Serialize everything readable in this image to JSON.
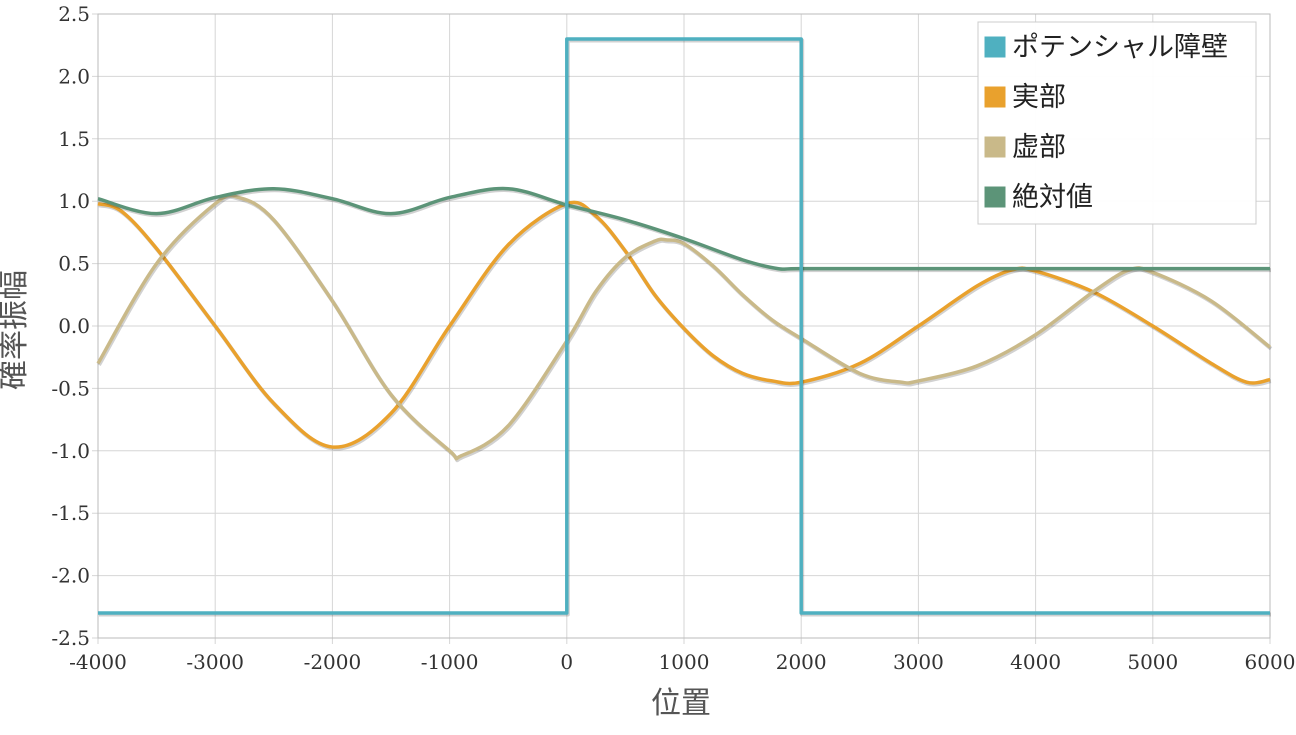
{
  "chart_data": {
    "type": "line",
    "xlabel": "位置",
    "ylabel": "確率振幅",
    "xlim": [
      -4000,
      6000
    ],
    "ylim": [
      -2.5,
      2.5
    ],
    "x_ticks": [
      -4000,
      -3000,
      -2000,
      -1000,
      0,
      1000,
      2000,
      3000,
      4000,
      5000,
      6000
    ],
    "y_ticks": [
      2.5,
      2.0,
      1.5,
      1.0,
      0.5,
      0.0,
      -0.5,
      -1.0,
      -1.5,
      -2.0,
      -2.5
    ],
    "x_tick_labels": [
      "-4000",
      "-3000",
      "-2000",
      "-1000",
      "0",
      "1000",
      "2000",
      "3000",
      "4000",
      "5000",
      "6000"
    ],
    "y_tick_labels": [
      "2.5",
      "2.0",
      "1.5",
      "1.0",
      "0.5",
      "0.0",
      "-0.5",
      "-1.0",
      "-1.5",
      "-2.0",
      "-2.5"
    ],
    "grid": true,
    "legend_position": "top-right",
    "series": [
      {
        "name": "ポテンシャル障壁",
        "color": "#4fb0c0",
        "x": [
          -4000,
          0,
          0,
          2000,
          2000,
          6000
        ],
        "y": [
          -2.3,
          -2.3,
          2.3,
          2.3,
          -2.3,
          -2.3
        ]
      },
      {
        "name": "実部",
        "color": "#e9a12d",
        "x": [
          -4000,
          -3800,
          -3500,
          -3000,
          -2500,
          -2000,
          -1500,
          -1000,
          -500,
          0,
          250,
          500,
          750,
          1000,
          1250,
          1500,
          1750,
          2000,
          2500,
          3000,
          3500,
          3800,
          4000,
          4500,
          5000,
          5500,
          5800,
          6000
        ],
        "y": [
          0.98,
          0.92,
          0.62,
          0.0,
          -0.62,
          -0.97,
          -0.7,
          0.0,
          0.65,
          0.98,
          0.88,
          0.6,
          0.25,
          -0.02,
          -0.24,
          -0.38,
          -0.44,
          -0.45,
          -0.3,
          0.0,
          0.32,
          0.45,
          0.44,
          0.27,
          0.0,
          -0.3,
          -0.45,
          -0.43
        ]
      },
      {
        "name": "虚部",
        "color": "#c9b989",
        "x": [
          -4000,
          -3500,
          -3000,
          -2800,
          -2500,
          -2000,
          -1500,
          -1000,
          -900,
          -500,
          0,
          250,
          500,
          750,
          850,
          1000,
          1250,
          1500,
          1750,
          2000,
          2500,
          2850,
          3000,
          3500,
          4000,
          4500,
          4800,
          5000,
          5500,
          6000
        ],
        "y": [
          -0.3,
          0.5,
          0.98,
          1.03,
          0.85,
          0.2,
          -0.55,
          -1.0,
          -1.04,
          -0.8,
          -0.12,
          0.28,
          0.55,
          0.68,
          0.69,
          0.66,
          0.48,
          0.25,
          0.05,
          -0.1,
          -0.38,
          -0.45,
          -0.44,
          -0.32,
          -0.07,
          0.28,
          0.45,
          0.43,
          0.2,
          -0.17
        ]
      },
      {
        "name": "絶対値",
        "color": "#5c9478",
        "x": [
          -4000,
          -3500,
          -3000,
          -2500,
          -2000,
          -1500,
          -1000,
          -500,
          0,
          500,
          1000,
          1500,
          1800,
          2000,
          3000,
          4000,
          5000,
          6000
        ],
        "y": [
          1.02,
          0.9,
          1.03,
          1.1,
          1.02,
          0.9,
          1.03,
          1.1,
          0.97,
          0.85,
          0.7,
          0.53,
          0.46,
          0.46,
          0.46,
          0.46,
          0.46,
          0.46
        ]
      }
    ]
  }
}
